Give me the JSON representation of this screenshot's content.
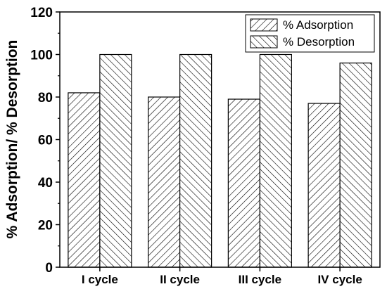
{
  "chart_data": {
    "type": "bar",
    "title": "",
    "xlabel": "",
    "ylabel": "% Adsorption/ % Desorption",
    "categories": [
      "I cycle",
      "II cycle",
      "III cycle",
      "IV cycle"
    ],
    "series": [
      {
        "name": "% Adsorption",
        "values": [
          82,
          80,
          79,
          77
        ],
        "hatch": "forward-diagonal"
      },
      {
        "name": "% Desorption",
        "values": [
          100,
          100,
          100,
          96
        ],
        "hatch": "backward-diagonal"
      }
    ],
    "ylim": [
      0,
      120
    ],
    "yticks": [
      "0",
      "20",
      "40",
      "60",
      "80",
      "100",
      "120"
    ],
    "grid": false,
    "legend_position": "top-right",
    "colors": {
      "bar_fill": "#ffffff",
      "stroke": "#000000"
    }
  }
}
